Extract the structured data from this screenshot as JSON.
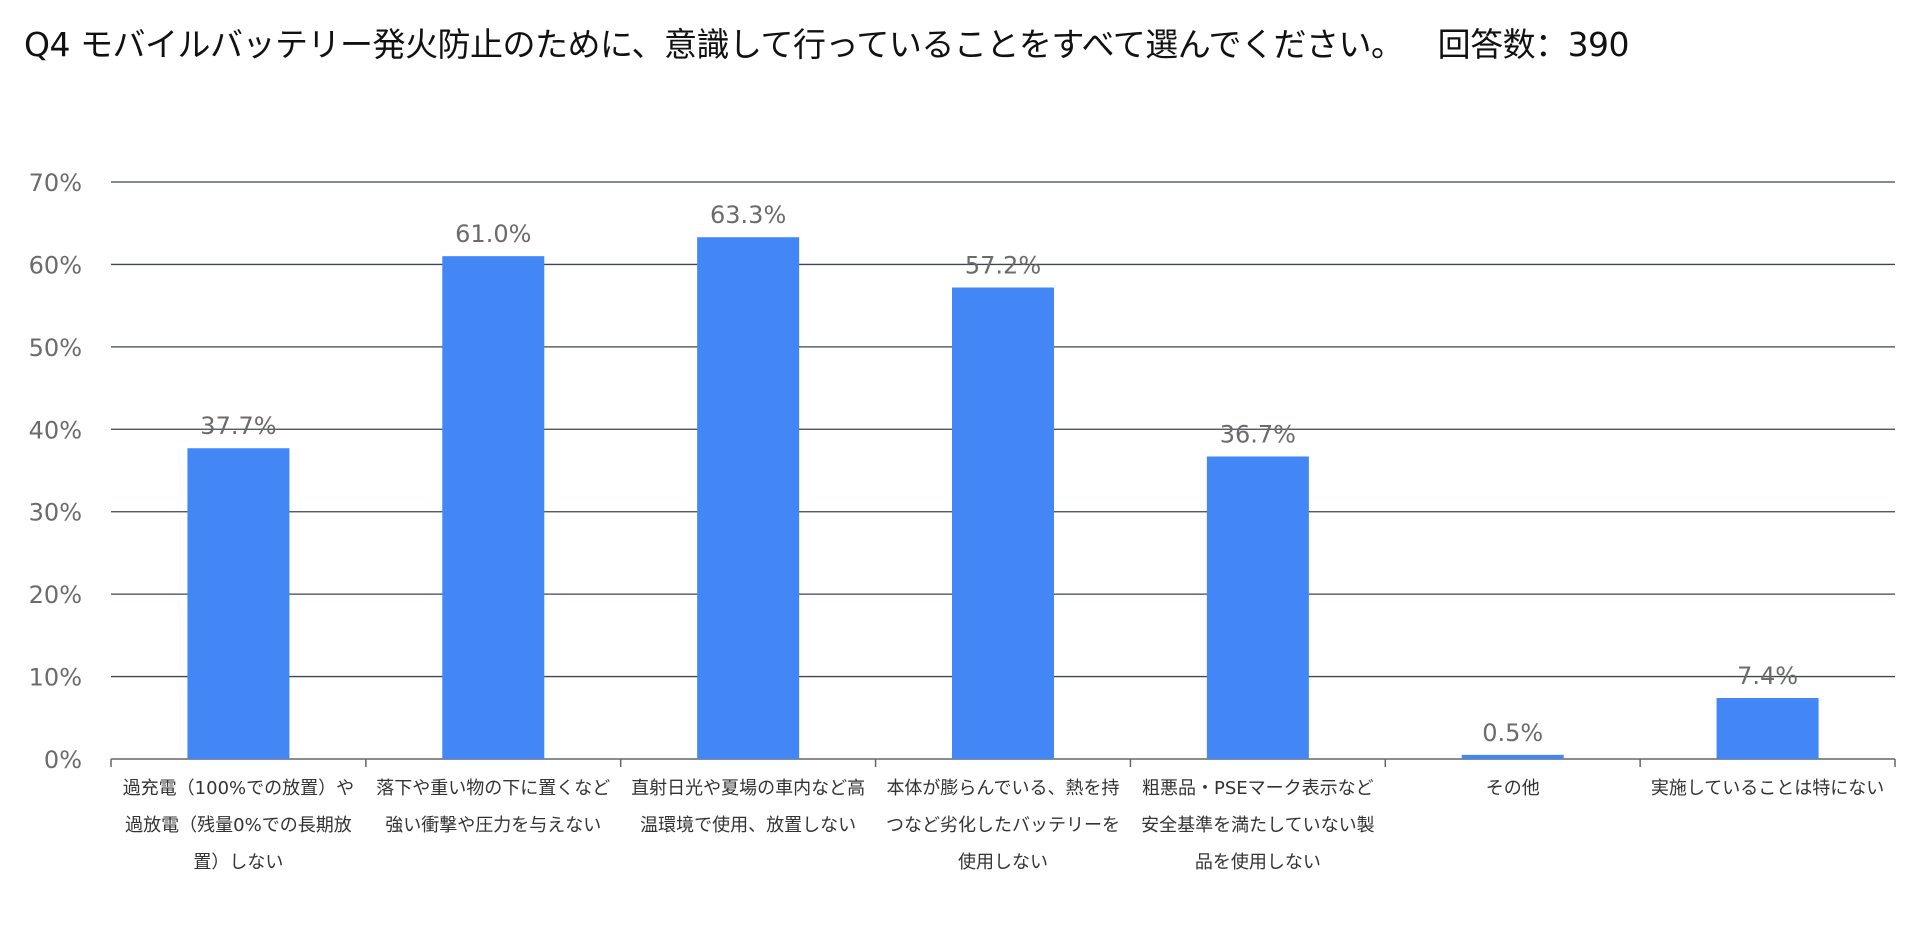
{
  "title": "Q4 モバイルバッテリー発火防止のために、意識して行っていることをすべて選んでください。",
  "responses": "回答数：390",
  "chart_data": {
    "type": "bar",
    "title": "Q4 モバイルバッテリー発火防止のために、意識して行っていることをすべて選んでください。",
    "categories": [
      "過充電（100%での放置）や過放電（残量0%での長期放置）しない",
      "落下や重い物の下に置くなど強い衝撃や圧力を与えない",
      "直射日光や夏場の車内など高温環境で使用、放置しない",
      "本体が膨らんでいる、熱を持つなど劣化したバッテリーを使用しない",
      "粗悪品・PSEマーク表示など安全基準を満たしていない製品を使用しない",
      "その他",
      "実施していることは特にない"
    ],
    "values": [
      37.7,
      61.0,
      63.3,
      57.2,
      36.7,
      0.5,
      7.4
    ],
    "data_labels": [
      "37.7%",
      "61.0%",
      "63.3%",
      "57.2%",
      "36.7%",
      "0.5%",
      "7.4%"
    ],
    "ylim": [
      0,
      70
    ],
    "yticks": [
      "0%",
      "10%",
      "20%",
      "30%",
      "40%",
      "50%",
      "60%",
      "70%"
    ],
    "grid": true,
    "bar_color": "#4287f5",
    "legend": "none"
  }
}
